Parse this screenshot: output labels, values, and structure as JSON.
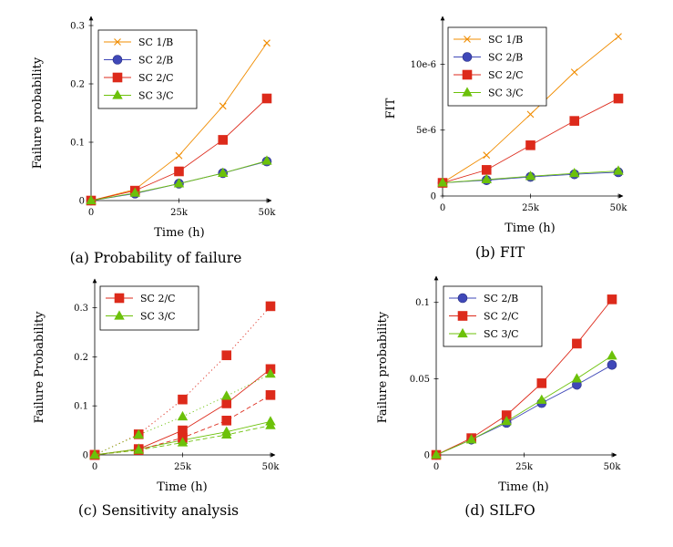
{
  "chart_data": [
    {
      "id": "a",
      "type": "line",
      "caption": "(a) Probability of failure",
      "xlabel": "Time (h)",
      "ylabel": "Failure probability",
      "xlim": [
        0,
        50000
      ],
      "ylim": [
        0,
        0.3
      ],
      "xticks": [
        0,
        25000,
        50000
      ],
      "xtick_labels": [
        "0",
        "25k",
        "50k"
      ],
      "yticks": [
        0,
        0.1,
        0.2,
        0.3
      ],
      "ytick_labels": [
        "0",
        "0.1",
        "0.2",
        "0.3"
      ],
      "legend_position": "top-left",
      "series": [
        {
          "name": "SC 1/B",
          "color": "#f08c00",
          "marker": "x",
          "dash": "solid",
          "x": [
            0,
            12500,
            25000,
            37500,
            50000
          ],
          "y": [
            0,
            0.019,
            0.077,
            0.162,
            0.27
          ]
        },
        {
          "name": "SC 2/B",
          "color": "#3f48b8",
          "marker": "circle",
          "dash": "solid",
          "x": [
            0,
            12500,
            25000,
            37500,
            50000
          ],
          "y": [
            0,
            0.012,
            0.029,
            0.047,
            0.067
          ]
        },
        {
          "name": "SC 2/C",
          "color": "#dd2a1b",
          "marker": "square",
          "dash": "solid",
          "x": [
            0,
            12500,
            25000,
            37500,
            50000
          ],
          "y": [
            0,
            0.017,
            0.05,
            0.104,
            0.175
          ]
        },
        {
          "name": "SC 3/C",
          "color": "#6cc10a",
          "marker": "triangle",
          "dash": "solid",
          "x": [
            0,
            12500,
            25000,
            37500,
            50000
          ],
          "y": [
            0,
            0.013,
            0.029,
            0.047,
            0.068
          ]
        }
      ]
    },
    {
      "id": "b",
      "type": "line",
      "caption": "(b) FIT",
      "xlabel": "Time (h)",
      "ylabel": "FIT",
      "xlim": [
        0,
        50000
      ],
      "ylim": [
        0,
        1.28e-05
      ],
      "xticks": [
        0,
        25000,
        50000
      ],
      "xtick_labels": [
        "0",
        "25k",
        "50k"
      ],
      "yticks": [
        0,
        5e-06,
        1e-05
      ],
      "ytick_labels": [
        "0",
        "5e-6",
        "10e-6"
      ],
      "legend_position": "top-left",
      "series": [
        {
          "name": "SC 1/B",
          "color": "#f08c00",
          "marker": "x",
          "dash": "solid",
          "x": [
            0,
            12500,
            25000,
            37500,
            50000
          ],
          "y": [
            1e-06,
            3.1e-06,
            6.2e-06,
            9.4e-06,
            1.21e-05
          ]
        },
        {
          "name": "SC 2/B",
          "color": "#3f48b8",
          "marker": "circle",
          "dash": "solid",
          "x": [
            0,
            12500,
            25000,
            37500,
            50000
          ],
          "y": [
            1e-06,
            1.2e-06,
            1.45e-06,
            1.65e-06,
            1.8e-06
          ]
        },
        {
          "name": "SC 2/C",
          "color": "#dd2a1b",
          "marker": "square",
          "dash": "solid",
          "x": [
            0,
            12500,
            25000,
            37500,
            50000
          ],
          "y": [
            1e-06,
            1.98e-06,
            3.85e-06,
            5.7e-06,
            7.4e-06
          ]
        },
        {
          "name": "SC 3/C",
          "color": "#6cc10a",
          "marker": "triangle",
          "dash": "solid",
          "x": [
            0,
            12500,
            25000,
            37500,
            50000
          ],
          "y": [
            1e-06,
            1.25e-06,
            1.5e-06,
            1.72e-06,
            1.9e-06
          ]
        }
      ]
    },
    {
      "id": "c",
      "type": "line",
      "caption": "(c) Sensitivity analysis",
      "xlabel": "Time (h)",
      "ylabel": "Failure Probability",
      "xlim": [
        0,
        50000
      ],
      "ylim": [
        0,
        0.34
      ],
      "xticks": [
        0,
        25000,
        50000
      ],
      "xtick_labels": [
        "0",
        "25k",
        "50k"
      ],
      "yticks": [
        0,
        0.1,
        0.2,
        0.3
      ],
      "ytick_labels": [
        "0",
        "0.1",
        "0.2",
        "0.3"
      ],
      "legend_position": "top-left",
      "series": [
        {
          "name": "SC 2/C",
          "color": "#dd2a1b",
          "marker": "square",
          "dash": "solid",
          "x": [
            0,
            12500,
            25000,
            37500,
            50000
          ],
          "y": [
            0,
            0.012,
            0.05,
            0.105,
            0.175
          ]
        },
        {
          "name": "SC 3/C",
          "color": "#6cc10a",
          "marker": "triangle",
          "dash": "solid",
          "x": [
            0,
            12500,
            25000,
            37500,
            50000
          ],
          "y": [
            0,
            0.012,
            0.03,
            0.047,
            0.068
          ]
        },
        {
          "name": "",
          "color": "#dd2a1b",
          "marker": "square",
          "dash": "dotted",
          "x": [
            0,
            12500,
            25000,
            37500,
            50000
          ],
          "y": [
            0,
            0.042,
            0.113,
            0.203,
            0.303
          ]
        },
        {
          "name": "",
          "color": "#dd2a1b",
          "marker": "square",
          "dash": "dashed",
          "x": [
            0,
            12500,
            25000,
            37500,
            50000
          ],
          "y": [
            0,
            0.01,
            0.035,
            0.07,
            0.122
          ]
        },
        {
          "name": "",
          "color": "#6cc10a",
          "marker": "triangle",
          "dash": "dotted",
          "x": [
            0,
            12500,
            25000,
            37500,
            50000
          ],
          "y": [
            0,
            0.041,
            0.078,
            0.12,
            0.165
          ]
        },
        {
          "name": "",
          "color": "#6cc10a",
          "marker": "triangle",
          "dash": "dashed",
          "x": [
            0,
            12500,
            25000,
            37500,
            50000
          ],
          "y": [
            0,
            0.01,
            0.025,
            0.041,
            0.06
          ]
        }
      ]
    },
    {
      "id": "d",
      "type": "line",
      "caption": "(d) SILFO",
      "xlabel": "Time (h)",
      "ylabel": "Failure probability",
      "xlim": [
        0,
        50000
      ],
      "ylim": [
        0,
        0.11
      ],
      "xticks": [
        0,
        25000,
        50000
      ],
      "xtick_labels": [
        "0",
        "25k",
        "50k"
      ],
      "yticks": [
        0,
        0.05,
        0.1
      ],
      "ytick_labels": [
        "0",
        "0.05",
        "0.1"
      ],
      "legend_position": "top-left",
      "series": [
        {
          "name": "SC 2/B",
          "color": "#3f48b8",
          "marker": "circle",
          "dash": "solid",
          "x": [
            0,
            10000,
            20000,
            30000,
            40000,
            50000
          ],
          "y": [
            0,
            0.01,
            0.021,
            0.034,
            0.046,
            0.059
          ]
        },
        {
          "name": "SC 2/C",
          "color": "#dd2a1b",
          "marker": "square",
          "dash": "solid",
          "x": [
            0,
            10000,
            20000,
            30000,
            40000,
            50000
          ],
          "y": [
            0,
            0.011,
            0.026,
            0.047,
            0.073,
            0.102
          ]
        },
        {
          "name": "SC 3/C",
          "color": "#6cc10a",
          "marker": "triangle",
          "dash": "solid",
          "x": [
            0,
            10000,
            20000,
            30000,
            40000,
            50000
          ],
          "y": [
            0,
            0.01,
            0.022,
            0.036,
            0.05,
            0.065
          ]
        }
      ]
    }
  ]
}
